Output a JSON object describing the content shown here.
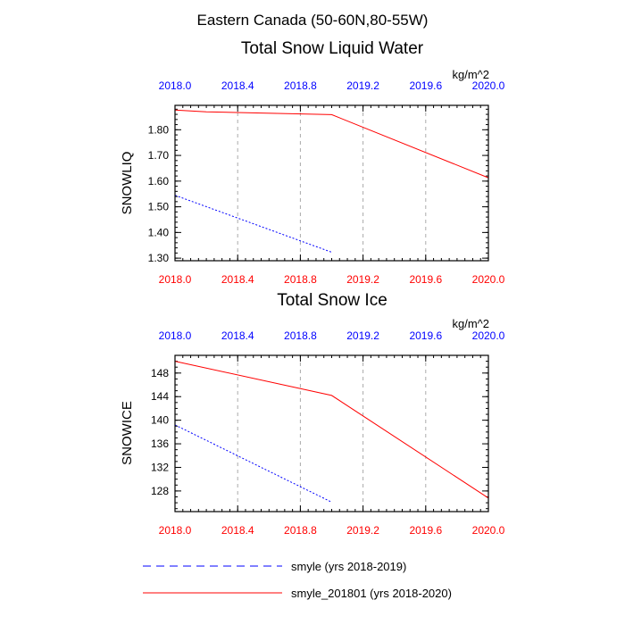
{
  "suptitle": "Eastern Canada (50-60N,80-55W)",
  "colors": {
    "blue": "#0000ff",
    "red": "#ff0000",
    "axis": "#000000",
    "grid": "#aaaaaa"
  },
  "legend": [
    {
      "label": "smyle (yrs 2018-2019)",
      "color": "#0000ff",
      "style": "dashed"
    },
    {
      "label": "smyle_201801 (yrs 2018-2020)",
      "color": "#ff0000",
      "style": "solid"
    }
  ],
  "chart_data": [
    {
      "type": "line",
      "title": "Total Snow Liquid Water",
      "units": "kg/m^2",
      "ylabel": "SNOWLIQ",
      "xlim": [
        2018.0,
        2020.0
      ],
      "ylim": [
        1.29,
        1.895
      ],
      "x_ticks": [
        "2018.0",
        "2018.4",
        "2018.8",
        "2019.2",
        "2019.6",
        "2020.0"
      ],
      "x_tick_values": [
        2018.0,
        2018.4,
        2018.8,
        2019.2,
        2019.6,
        2020.0
      ],
      "y_ticks": [
        "1.30",
        "1.40",
        "1.50",
        "1.60",
        "1.70",
        "1.80"
      ],
      "y_tick_values": [
        1.3,
        1.4,
        1.5,
        1.6,
        1.7,
        1.8
      ],
      "y_minor_step": 0.02,
      "grid": true,
      "series": [
        {
          "name": "smyle (yrs 2018-2019)",
          "color": "#0000ff",
          "style": "dashed",
          "x": [
            2018.0,
            2019.0
          ],
          "values": [
            1.545,
            1.323
          ]
        },
        {
          "name": "smyle_201801 (yrs 2018-2020)",
          "color": "#ff0000",
          "style": "solid",
          "x": [
            2018.0,
            2018.2,
            2019.0,
            2020.0
          ],
          "values": [
            1.877,
            1.87,
            1.859,
            1.613
          ]
        }
      ]
    },
    {
      "type": "line",
      "title": "Total Snow Ice",
      "units": "kg/m^2",
      "ylabel": "SNOWICE",
      "xlim": [
        2018.0,
        2020.0
      ],
      "ylim": [
        124.5,
        151.0
      ],
      "x_ticks": [
        "2018.0",
        "2018.4",
        "2018.8",
        "2019.2",
        "2019.6",
        "2020.0"
      ],
      "x_tick_values": [
        2018.0,
        2018.4,
        2018.8,
        2019.2,
        2019.6,
        2020.0
      ],
      "y_ticks": [
        "128",
        "132",
        "136",
        "140",
        "144",
        "148"
      ],
      "y_tick_values": [
        128,
        132,
        136,
        140,
        144,
        148
      ],
      "y_minor_step": 1,
      "grid": true,
      "series": [
        {
          "name": "smyle (yrs 2018-2019)",
          "color": "#0000ff",
          "style": "dashed",
          "x": [
            2018.0,
            2019.0
          ],
          "values": [
            139.2,
            126.1
          ]
        },
        {
          "name": "smyle_201801 (yrs 2018-2020)",
          "color": "#ff0000",
          "style": "solid",
          "x": [
            2018.0,
            2019.0,
            2020.0
          ],
          "values": [
            150.0,
            144.2,
            126.8
          ]
        }
      ]
    }
  ]
}
